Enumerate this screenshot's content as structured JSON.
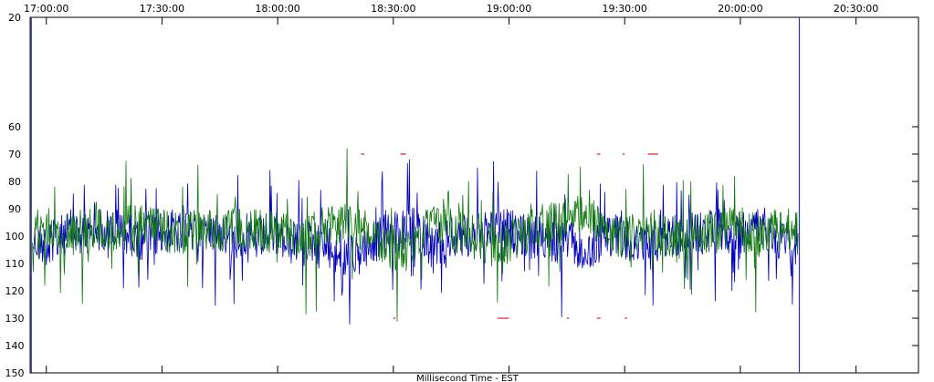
{
  "chart_data": {
    "type": "line",
    "title": "",
    "xlabel": "Millisecond Time - EST",
    "ylabel": "",
    "x_ticks": [
      "17:00:00",
      "17:30:00",
      "18:00:00",
      "18:30:00",
      "19:00:00",
      "19:30:00",
      "20:00:00",
      "20:30:00"
    ],
    "x_tick_hours": [
      17.0,
      17.5,
      18.0,
      18.5,
      19.0,
      19.5,
      20.0,
      20.5
    ],
    "xlim": [
      16.93,
      20.77
    ],
    "y_ticks": [
      "20",
      "60",
      "70",
      "80",
      "90",
      "100",
      "110",
      "120",
      "130",
      "140",
      "150"
    ],
    "ylim": [
      20,
      150
    ],
    "grid": false,
    "markers": [
      {
        "name": "start-marker",
        "x": 16.935,
        "color": "#3333aa"
      },
      {
        "name": "end-marker",
        "x": 20.255,
        "color": "#3333aa"
      }
    ],
    "series": [
      {
        "color": "#0000bb",
        "x": [
          16.94,
          17.0,
          17.05,
          17.1,
          17.15,
          17.2,
          17.25,
          17.3,
          17.35,
          17.4,
          17.45,
          17.5,
          17.55,
          17.6,
          17.65,
          17.7,
          17.75,
          17.8,
          17.85,
          17.9,
          17.95,
          18.0,
          18.05,
          18.1,
          18.15,
          18.2,
          18.25,
          18.3,
          18.35,
          18.4,
          18.45,
          18.5,
          18.55,
          18.6,
          18.65,
          18.7,
          18.75,
          18.8,
          18.85,
          18.9,
          18.95,
          19.0,
          19.05,
          19.1,
          19.15,
          19.2,
          19.25,
          19.3,
          19.35,
          19.4,
          19.45,
          19.5,
          19.55,
          19.6,
          19.65,
          19.7,
          19.75,
          19.8,
          19.85,
          19.9,
          19.95,
          20.0,
          20.05,
          20.1,
          20.15,
          20.2,
          20.25
        ],
        "y": [
          102,
          103,
          101,
          98,
          99,
          100,
          97,
          98,
          99,
          101,
          100,
          99,
          98,
          100,
          97,
          99,
          98,
          101,
          100,
          102,
          99,
          100,
          103,
          101,
          102,
          104,
          106,
          108,
          107,
          104,
          100,
          99,
          98,
          97,
          102,
          103,
          101,
          100,
          99,
          98,
          97,
          98,
          99,
          101,
          100,
          103,
          102,
          104,
          106,
          101,
          99,
          102,
          104,
          103,
          101,
          100,
          99,
          98,
          100,
          97,
          99,
          101,
          98,
          96,
          100,
          102,
          104
        ]
      },
      {
        "color": "#117711",
        "x": [
          16.94,
          17.0,
          17.05,
          17.1,
          17.15,
          17.2,
          17.25,
          17.3,
          17.35,
          17.4,
          17.45,
          17.5,
          17.55,
          17.6,
          17.65,
          17.7,
          17.75,
          17.8,
          17.85,
          17.9,
          17.95,
          18.0,
          18.05,
          18.1,
          18.15,
          18.2,
          18.25,
          18.3,
          18.35,
          18.4,
          18.45,
          18.5,
          18.55,
          18.6,
          18.65,
          18.7,
          18.75,
          18.8,
          18.85,
          18.9,
          18.95,
          19.0,
          19.05,
          19.1,
          19.15,
          19.2,
          19.25,
          19.3,
          19.35,
          19.4,
          19.45,
          19.5,
          19.55,
          19.6,
          19.65,
          19.7,
          19.75,
          19.8,
          19.85,
          19.9,
          19.95,
          20.0,
          20.05,
          20.1,
          20.15,
          20.2,
          20.25
        ],
        "y": [
          97,
          96,
          98,
          100,
          99,
          97,
          96,
          98,
          97,
          95,
          96,
          98,
          99,
          100,
          98,
          97,
          99,
          96,
          98,
          97,
          99,
          98,
          100,
          101,
          99,
          97,
          96,
          95,
          97,
          99,
          103,
          105,
          106,
          104,
          97,
          96,
          98,
          99,
          100,
          103,
          104,
          102,
          100,
          97,
          96,
          95,
          94,
          93,
          92,
          99,
          101,
          100,
          98,
          97,
          99,
          101,
          102,
          100,
          98,
          99,
          97,
          96,
          99,
          101,
          98,
          97,
          99
        ]
      }
    ],
    "red_segments": [
      {
        "y": 70,
        "x": [
          18.36,
          18.375
        ]
      },
      {
        "y": 70,
        "x": [
          18.53,
          18.555
        ]
      },
      {
        "y": 70,
        "x": [
          19.38,
          19.395
        ]
      },
      {
        "y": 70,
        "x": [
          19.49,
          19.5
        ]
      },
      {
        "y": 70,
        "x": [
          19.6,
          19.645
        ]
      },
      {
        "y": 130,
        "x": [
          18.5,
          18.51
        ]
      },
      {
        "y": 130,
        "x": [
          18.95,
          19.0
        ]
      },
      {
        "y": 130,
        "x": [
          19.25,
          19.26
        ]
      },
      {
        "y": 130,
        "x": [
          19.38,
          19.395
        ]
      },
      {
        "y": 130,
        "x": [
          19.5,
          19.51
        ]
      }
    ]
  }
}
